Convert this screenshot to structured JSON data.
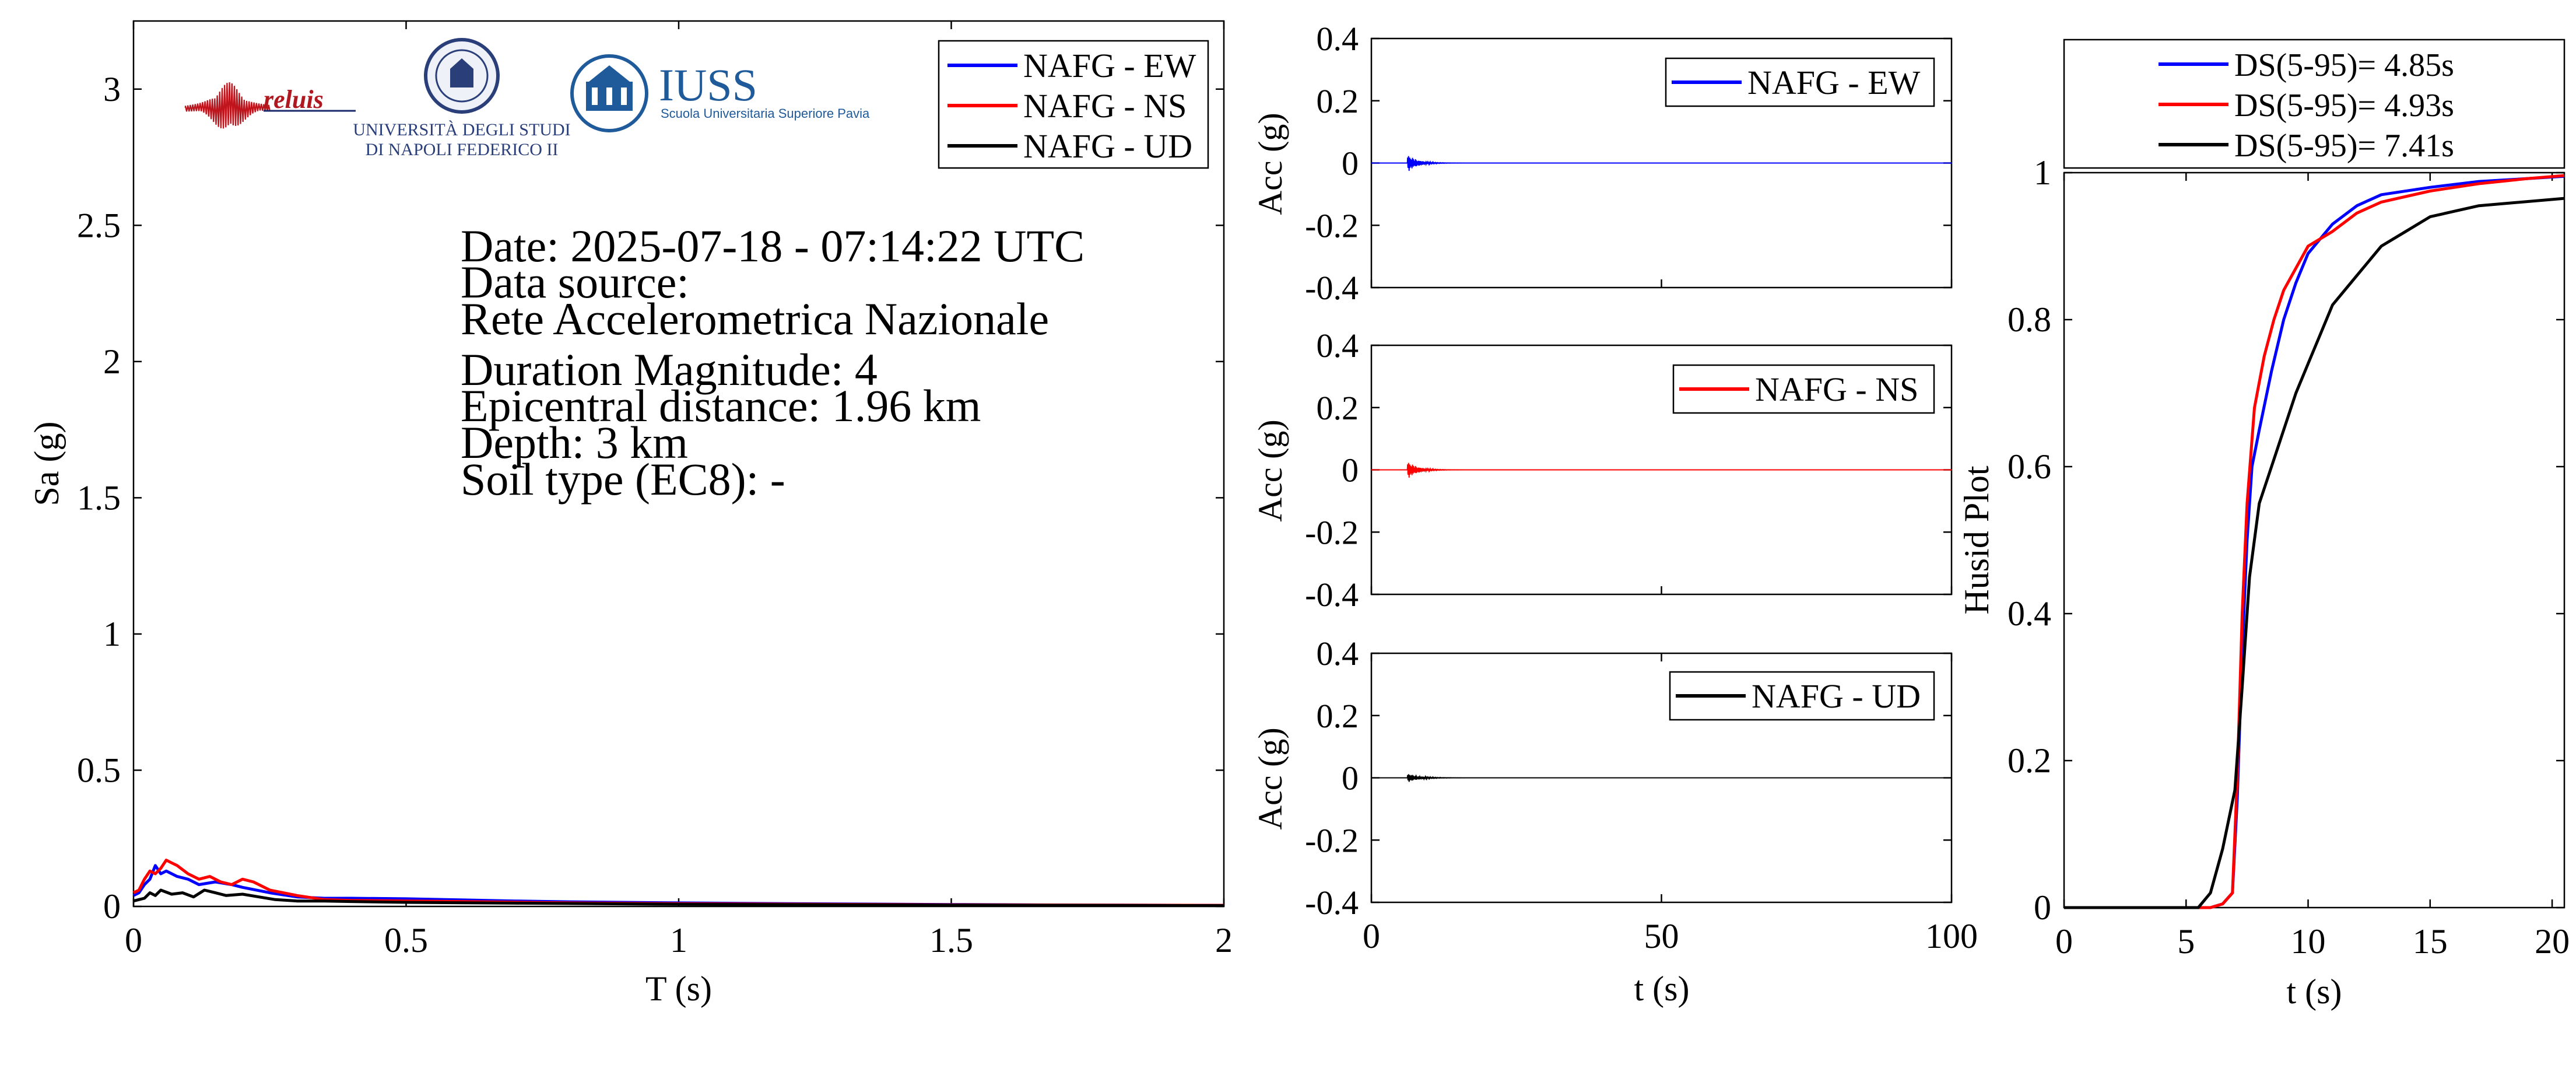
{
  "chart_data": [
    {
      "type": "line",
      "xlabel": "T (s)",
      "ylabel": "Sa (g)",
      "xlim": [
        0,
        2
      ],
      "ylim": [
        0,
        3.25
      ],
      "xticks": [
        "0",
        "0.5",
        "1",
        "1.5",
        "2"
      ],
      "yticks": [
        "0",
        "0.5",
        "1",
        "1.5",
        "2",
        "2.5",
        "3"
      ],
      "grid": false,
      "legend_position": "top-right",
      "annotation": {
        "date": "Date: 2025-07-18 - 07:14:22 UTC",
        "source_label": "Data source:",
        "source": "Rete Accelerometrica Nazionale",
        "magnitude": "Duration Magnitude: 4",
        "distance": "Epicentral distance: 1.96 km",
        "depth": "Depth: 3 km",
        "soil": "Soil type (EC8): -"
      },
      "logos": {
        "reluis": "reluis",
        "unina_line1": "UNIVERSITÀ DEGLI STUDI",
        "unina_line2": "DI NAPOLI FEDERICO II",
        "iuss": "IUSS",
        "iuss_sub": "Scuola Universitaria Superiore Pavia"
      },
      "series": [
        {
          "name": "NAFG - EW",
          "color": "#0000ff",
          "x": [
            0,
            0.01,
            0.02,
            0.03,
            0.04,
            0.05,
            0.06,
            0.08,
            0.1,
            0.12,
            0.15,
            0.18,
            0.2,
            0.25,
            0.3,
            0.35,
            0.4,
            0.5,
            0.6,
            0.7,
            0.8,
            1.0,
            1.2,
            1.5,
            1.75,
            2.0
          ],
          "y": [
            0.04,
            0.05,
            0.08,
            0.1,
            0.15,
            0.12,
            0.13,
            0.11,
            0.1,
            0.08,
            0.09,
            0.08,
            0.07,
            0.05,
            0.035,
            0.03,
            0.03,
            0.028,
            0.024,
            0.02,
            0.017,
            0.013,
            0.01,
            0.007,
            0.005,
            0.004
          ]
        },
        {
          "name": "NAFG - NS",
          "color": "#ff0000",
          "x": [
            0,
            0.01,
            0.02,
            0.03,
            0.04,
            0.05,
            0.06,
            0.07,
            0.08,
            0.1,
            0.12,
            0.14,
            0.16,
            0.18,
            0.2,
            0.22,
            0.25,
            0.3,
            0.35,
            0.4,
            0.5,
            0.6,
            0.8,
            1.0,
            1.5,
            2.0
          ],
          "y": [
            0.05,
            0.06,
            0.1,
            0.13,
            0.12,
            0.14,
            0.17,
            0.16,
            0.15,
            0.12,
            0.1,
            0.11,
            0.09,
            0.08,
            0.1,
            0.09,
            0.06,
            0.04,
            0.025,
            0.022,
            0.02,
            0.018,
            0.013,
            0.01,
            0.006,
            0.004
          ]
        },
        {
          "name": "NAFG - UD",
          "color": "#000000",
          "x": [
            0,
            0.01,
            0.02,
            0.03,
            0.04,
            0.05,
            0.07,
            0.09,
            0.11,
            0.13,
            0.15,
            0.17,
            0.2,
            0.23,
            0.26,
            0.3,
            0.35,
            0.4,
            0.5,
            0.7,
            1.0,
            1.5,
            2.0
          ],
          "y": [
            0.02,
            0.025,
            0.03,
            0.05,
            0.04,
            0.06,
            0.045,
            0.05,
            0.035,
            0.06,
            0.05,
            0.04,
            0.045,
            0.035,
            0.025,
            0.02,
            0.02,
            0.018,
            0.015,
            0.012,
            0.008,
            0.005,
            0.003
          ]
        }
      ]
    },
    {
      "type": "line",
      "xlabel": "",
      "ylabel": "Acc (g)",
      "xlim": [
        0,
        100
      ],
      "ylim": [
        -0.4,
        0.4
      ],
      "xticks": [],
      "yticks": [
        "0.4",
        "0.2",
        "0",
        "-0.2",
        "-0.4"
      ],
      "grid": false,
      "legend_position": "top-right",
      "series": [
        {
          "name": "NAFG - EW",
          "color": "#0000ff",
          "peak": 0.03,
          "onset_s": 6.2,
          "decay": 0.6
        }
      ]
    },
    {
      "type": "line",
      "xlabel": "",
      "ylabel": "Acc (g)",
      "xlim": [
        0,
        100
      ],
      "ylim": [
        -0.4,
        0.4
      ],
      "xticks": [],
      "yticks": [
        "0.4",
        "0.2",
        "0",
        "-0.2",
        "-0.4"
      ],
      "grid": false,
      "legend_position": "top-right",
      "series": [
        {
          "name": "NAFG - NS",
          "color": "#ff0000",
          "peak": 0.03,
          "onset_s": 6.2,
          "decay": 0.6
        }
      ]
    },
    {
      "type": "line",
      "xlabel": "t (s)",
      "ylabel": "Acc (g)",
      "xlim": [
        0,
        100
      ],
      "ylim": [
        -0.4,
        0.4
      ],
      "xticks": [
        "0",
        "50",
        "100"
      ],
      "yticks": [
        "0.4",
        "0.2",
        "0",
        "-0.2",
        "-0.4"
      ],
      "grid": false,
      "legend_position": "top-right",
      "series": [
        {
          "name": "NAFG - UD",
          "color": "#000000",
          "peak": 0.015,
          "onset_s": 6.2,
          "decay": 0.5
        }
      ]
    },
    {
      "type": "line",
      "xlabel": "t (s)",
      "ylabel": "Husid Plot",
      "xlim": [
        0,
        20.5
      ],
      "ylim": [
        0,
        1
      ],
      "xticks": [
        "0",
        "5",
        "10",
        "15",
        "20"
      ],
      "yticks": [
        "0",
        "0.2",
        "0.4",
        "0.6",
        "0.8",
        "1"
      ],
      "grid": false,
      "legend_position": "top",
      "series": [
        {
          "name": "DS(5-95)= 4.85s",
          "color": "#0000ff",
          "x": [
            0,
            6,
            6.5,
            6.9,
            7.1,
            7.3,
            7.5,
            7.7,
            8.0,
            8.5,
            9.0,
            9.5,
            10.0,
            11.0,
            12.0,
            13.0,
            15.0,
            17.0,
            19.0,
            20.5
          ],
          "y": [
            0,
            0,
            0.005,
            0.02,
            0.15,
            0.35,
            0.5,
            0.6,
            0.65,
            0.73,
            0.8,
            0.85,
            0.89,
            0.93,
            0.955,
            0.97,
            0.98,
            0.988,
            0.992,
            0.995
          ]
        },
        {
          "name": "DS(5-95)= 4.93s",
          "color": "#ff0000",
          "x": [
            0,
            6,
            6.5,
            6.9,
            7.1,
            7.3,
            7.5,
            7.8,
            8.2,
            8.6,
            9.0,
            9.5,
            10.0,
            11.0,
            12.0,
            13.0,
            15.0,
            17.0,
            19.0,
            20.5
          ],
          "y": [
            0,
            0,
            0.005,
            0.02,
            0.18,
            0.4,
            0.55,
            0.68,
            0.75,
            0.8,
            0.84,
            0.87,
            0.9,
            0.92,
            0.945,
            0.96,
            0.975,
            0.985,
            0.992,
            0.996
          ]
        },
        {
          "name": "DS(5-95)= 7.41s",
          "color": "#000000",
          "x": [
            0,
            5.5,
            6,
            6.5,
            7.0,
            7.3,
            7.6,
            8.0,
            8.5,
            9.0,
            9.5,
            10.0,
            10.5,
            11.0,
            12.0,
            13.0,
            14.0,
            15.0,
            17.0,
            20.5
          ],
          "y": [
            0,
            0,
            0.02,
            0.08,
            0.16,
            0.3,
            0.45,
            0.55,
            0.6,
            0.65,
            0.7,
            0.74,
            0.78,
            0.82,
            0.86,
            0.9,
            0.92,
            0.94,
            0.955,
            0.965
          ]
        }
      ]
    }
  ]
}
